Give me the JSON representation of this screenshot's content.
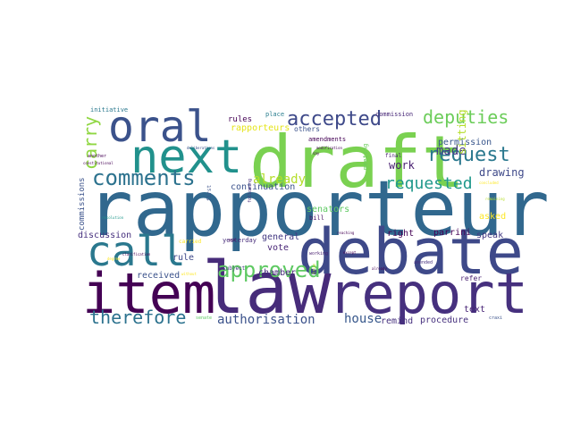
{
  "words": [
    {
      "text": "rapporteur",
      "color": "#31688e"
    },
    {
      "text": "draft",
      "color": "#7ad151"
    },
    {
      "text": "debate",
      "color": "#3e4989"
    },
    {
      "text": "law",
      "color": "#472c7a"
    },
    {
      "text": "report",
      "color": "#46307e"
    },
    {
      "text": "item",
      "color": "#440154"
    },
    {
      "text": "next",
      "color": "#21918c"
    },
    {
      "text": "oral",
      "color": "#3b528b"
    },
    {
      "text": "call",
      "color": "#2a788e"
    },
    {
      "text": "comments",
      "color": "#2c728e"
    },
    {
      "text": "accepted",
      "color": "#3e4989"
    },
    {
      "text": "deputies",
      "color": "#6ccd5a"
    },
    {
      "text": "request",
      "color": "#2a788e"
    },
    {
      "text": "approved",
      "color": "#5ec962"
    },
    {
      "text": "carry",
      "color": "#90d743"
    },
    {
      "text": "therefore",
      "color": "#2c728e"
    },
    {
      "text": "authorisation",
      "color": "#3b528b"
    },
    {
      "text": "requested",
      "color": "#1f988b"
    },
    {
      "text": "already",
      "color": "#b5de2b"
    },
    {
      "text": "made",
      "color": "#443983"
    },
    {
      "text": "house",
      "color": "#38588c"
    },
    {
      "text": "drawing",
      "color": "#3e4989"
    },
    {
      "text": "sitting",
      "color": "#b5de2b"
    },
    {
      "text": "work",
      "color": "#481f70"
    },
    {
      "text": "permission",
      "color": "#39568c"
    },
    {
      "text": "rapporteurs",
      "color": "#e5e419"
    },
    {
      "text": "continuation",
      "color": "#3b528b"
    },
    {
      "text": "discussion",
      "color": "#46307e"
    },
    {
      "text": "received",
      "color": "#3b528b"
    },
    {
      "text": "chamber",
      "color": "#472c7a"
    },
    {
      "text": "general",
      "color": "#443983"
    },
    {
      "text": "vote",
      "color": "#482576"
    },
    {
      "text": "rule",
      "color": "#3e4989"
    },
    {
      "text": "senators",
      "color": "#5ec962"
    },
    {
      "text": "right",
      "color": "#440154"
    },
    {
      "text": "speak",
      "color": "#443983"
    },
    {
      "text": "parrini",
      "color": "#440154"
    },
    {
      "text": "asked",
      "color": "#fde725"
    },
    {
      "text": "text",
      "color": "#482576"
    },
    {
      "text": "remind",
      "color": "#46307e"
    },
    {
      "text": "procedure",
      "color": "#46307e"
    },
    {
      "text": "refer",
      "color": "#481f70"
    },
    {
      "text": "rules",
      "color": "#440154"
    },
    {
      "text": "others",
      "color": "#3b528b"
    },
    {
      "text": "commission",
      "color": "#482878"
    },
    {
      "text": "amendments",
      "color": "#440154"
    },
    {
      "text": "initiative",
      "color": "#2a788e"
    },
    {
      "text": "place",
      "color": "#287d8e"
    },
    {
      "text": "commissions",
      "color": "#3b528b"
    },
    {
      "text": "yesterday",
      "color": "#472c7a"
    },
    {
      "text": "meeting",
      "color": "#6ccd5a"
    },
    {
      "text": "final",
      "color": "#481f70"
    },
    {
      "text": "bill",
      "color": "#471063"
    },
    {
      "text": "subject",
      "color": "#443983"
    },
    {
      "text": "carried",
      "color": "#fde725"
    },
    {
      "text": "working",
      "color": "#481f70"
    },
    {
      "text": "craxi",
      "color": "#3b528b"
    },
    {
      "text": "amended",
      "color": "#46307e"
    },
    {
      "text": "resolution",
      "color": "#1f988b"
    },
    {
      "text": "another",
      "color": "#440154"
    },
    {
      "text": "constitutional",
      "color": "#440154"
    },
    {
      "text": "deliberations",
      "color": "#3b528b"
    },
    {
      "text": "first",
      "color": "#3b528b"
    },
    {
      "text": "following",
      "color": "#472c7a"
    },
    {
      "text": "degree",
      "color": "#fde725"
    },
    {
      "text": "reaching",
      "color": "#440154"
    },
    {
      "text": "without",
      "color": "#fde725"
    },
    {
      "text": "except",
      "color": "#440154"
    },
    {
      "text": "modification",
      "color": "#440154"
    },
    {
      "text": "senate",
      "color": "#5ec962"
    },
    {
      "text": "concluded",
      "color": "#fde725"
    },
    {
      "text": "true",
      "color": "#b5de2b"
    },
    {
      "text": "ask",
      "color": "#440154"
    },
    {
      "text": "remaining",
      "color": "#b5de2b"
    },
    {
      "text": "clarification",
      "color": "#440154"
    },
    {
      "text": "say",
      "color": "#440154"
    },
    {
      "text": "already",
      "color": "#440154"
    }
  ]
}
